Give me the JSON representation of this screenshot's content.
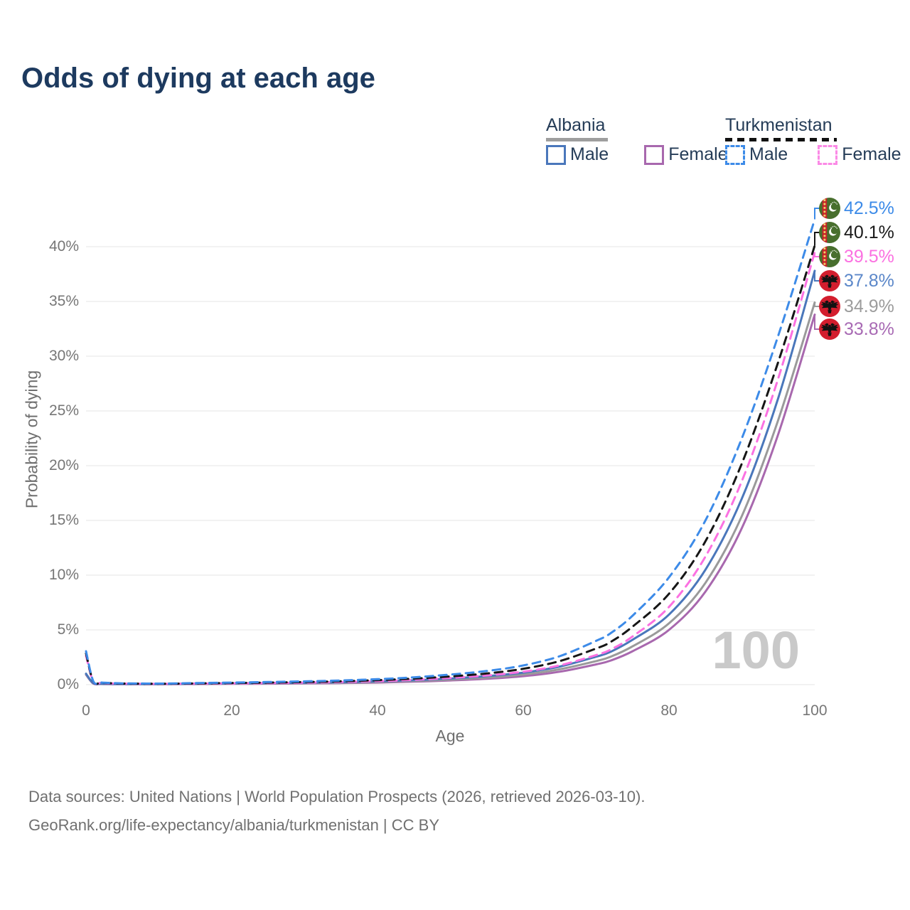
{
  "title": "Odds of dying at each age",
  "legend": {
    "albania": {
      "label": "Albania",
      "male": "Male",
      "female": "Female"
    },
    "turkmenistan": {
      "label": "Turkmenistan",
      "male": "Male",
      "female": "Female"
    }
  },
  "watermark_age": "100",
  "footer": {
    "line1": "Data sources: United Nations | World Population Prospects (2026, retrieved 2026-03-10).",
    "line2": "GeoRank.org/life-expectancy/albania/turkmenistan | CC BY"
  },
  "colors": {
    "title_text": "#1d3a5f",
    "legend_text": "#253c57",
    "axis_text": "#767676",
    "gridline": "#ededed",
    "albania_underline": "#9e9e9e",
    "turkmenistan_underline": "#111111",
    "albania_flag_red": "#d31e2e",
    "turkmenistan_flag_green": "#486f2e",
    "turkmenistan_flag_stripe": "#c8212e"
  },
  "chart_data": {
    "type": "line",
    "title": "Odds of dying at each age",
    "xlabel": "Age",
    "ylabel": "Probability of dying",
    "xlim": [
      0,
      100
    ],
    "ylim": [
      0,
      43
    ],
    "grid": "horizontal-only",
    "legend_position": "top-right",
    "y_ticks": [
      {
        "v": 0,
        "label": "0%"
      },
      {
        "v": 5,
        "label": "5%"
      },
      {
        "v": 10,
        "label": "10%"
      },
      {
        "v": 15,
        "label": "15%"
      },
      {
        "v": 20,
        "label": "20%"
      },
      {
        "v": 25,
        "label": "25%"
      },
      {
        "v": 30,
        "label": "30%"
      },
      {
        "v": 35,
        "label": "35%"
      },
      {
        "v": 40,
        "label": "40%"
      }
    ],
    "x_ticks": [
      {
        "v": 0,
        "label": "0"
      },
      {
        "v": 20,
        "label": "20"
      },
      {
        "v": 40,
        "label": "40"
      },
      {
        "v": 60,
        "label": "60"
      },
      {
        "v": 80,
        "label": "80"
      },
      {
        "v": 100,
        "label": "100"
      }
    ],
    "series": [
      {
        "name": "Turkmenistan Male",
        "country": "Turkmenistan",
        "sex": "male",
        "flag": "flag-tm",
        "color": "#3d8be8",
        "label_color": "#3d8be8",
        "dashed": true,
        "end_label": "42.5%",
        "end_value": 42.5,
        "points": [
          [
            0,
            3.05
          ],
          [
            1,
            0.3
          ],
          [
            2,
            0.2
          ],
          [
            3,
            0.16
          ],
          [
            5,
            0.12
          ],
          [
            10,
            0.1
          ],
          [
            15,
            0.14
          ],
          [
            20,
            0.19
          ],
          [
            25,
            0.24
          ],
          [
            30,
            0.3
          ],
          [
            35,
            0.38
          ],
          [
            40,
            0.5
          ],
          [
            45,
            0.67
          ],
          [
            50,
            0.92
          ],
          [
            55,
            1.25
          ],
          [
            60,
            1.75
          ],
          [
            65,
            2.6
          ],
          [
            70,
            4.0
          ],
          [
            72,
            4.7
          ],
          [
            75,
            6.3
          ],
          [
            80,
            9.8
          ],
          [
            85,
            15.0
          ],
          [
            90,
            22.5
          ],
          [
            95,
            31.9
          ],
          [
            100,
            42.5
          ]
        ]
      },
      {
        "name": "Turkmenistan Both sexes",
        "country": "Turkmenistan",
        "sex": "both",
        "flag": "flag-tm",
        "color": "#161616",
        "label_color": "#1a1a1a",
        "dashed": true,
        "end_label": "40.1%",
        "end_value": 40.1,
        "points": [
          [
            0,
            2.85
          ],
          [
            1,
            0.27
          ],
          [
            2,
            0.18
          ],
          [
            3,
            0.14
          ],
          [
            5,
            0.1
          ],
          [
            10,
            0.08
          ],
          [
            15,
            0.11
          ],
          [
            20,
            0.15
          ],
          [
            25,
            0.19
          ],
          [
            30,
            0.24
          ],
          [
            35,
            0.31
          ],
          [
            40,
            0.41
          ],
          [
            45,
            0.55
          ],
          [
            50,
            0.75
          ],
          [
            55,
            1.02
          ],
          [
            60,
            1.45
          ],
          [
            65,
            2.15
          ],
          [
            70,
            3.3
          ],
          [
            72,
            3.9
          ],
          [
            75,
            5.3
          ],
          [
            80,
            8.3
          ],
          [
            85,
            13.1
          ],
          [
            90,
            20.2
          ],
          [
            95,
            29.5
          ],
          [
            100,
            40.1
          ]
        ]
      },
      {
        "name": "Turkmenistan Female",
        "country": "Turkmenistan",
        "sex": "female",
        "flag": "flag-tm",
        "color": "#fb71e1",
        "label_color": "#fb71e1",
        "dashed": true,
        "end_label": "39.5%",
        "end_value": 39.5,
        "points": [
          [
            0,
            2.65
          ],
          [
            1,
            0.24
          ],
          [
            2,
            0.16
          ],
          [
            3,
            0.12
          ],
          [
            5,
            0.09
          ],
          [
            10,
            0.07
          ],
          [
            15,
            0.09
          ],
          [
            20,
            0.11
          ],
          [
            25,
            0.14
          ],
          [
            30,
            0.18
          ],
          [
            35,
            0.24
          ],
          [
            40,
            0.32
          ],
          [
            45,
            0.44
          ],
          [
            50,
            0.61
          ],
          [
            55,
            0.84
          ],
          [
            60,
            1.18
          ],
          [
            65,
            1.76
          ],
          [
            70,
            2.7
          ],
          [
            72,
            3.2
          ],
          [
            75,
            4.4
          ],
          [
            80,
            7.1
          ],
          [
            85,
            11.7
          ],
          [
            90,
            18.6
          ],
          [
            95,
            28.0
          ],
          [
            100,
            39.5
          ]
        ]
      },
      {
        "name": "Albania Male",
        "country": "Albania",
        "sex": "male",
        "flag": "flag-al",
        "color": "#4a77bb",
        "label_color": "#5b87c9",
        "dashed": false,
        "end_label": "37.8%",
        "end_value": 37.8,
        "points": [
          [
            0,
            1.0
          ],
          [
            1,
            0.12
          ],
          [
            2,
            0.08
          ],
          [
            3,
            0.07
          ],
          [
            5,
            0.06
          ],
          [
            10,
            0.06
          ],
          [
            15,
            0.09
          ],
          [
            20,
            0.12
          ],
          [
            25,
            0.14
          ],
          [
            30,
            0.17
          ],
          [
            35,
            0.22
          ],
          [
            40,
            0.29
          ],
          [
            45,
            0.4
          ],
          [
            50,
            0.56
          ],
          [
            55,
            0.78
          ],
          [
            60,
            1.1
          ],
          [
            65,
            1.65
          ],
          [
            70,
            2.55
          ],
          [
            72,
            3.0
          ],
          [
            75,
            4.1
          ],
          [
            80,
            6.4
          ],
          [
            85,
            10.5
          ],
          [
            90,
            17.0
          ],
          [
            95,
            26.2
          ],
          [
            100,
            37.8
          ]
        ]
      },
      {
        "name": "Albania Both sexes",
        "country": "Albania",
        "sex": "both",
        "flag": "flag-al",
        "color": "#9a9a9a",
        "label_color": "#9c9c9c",
        "dashed": false,
        "end_label": "34.9%",
        "end_value": 34.9,
        "points": [
          [
            0,
            0.95
          ],
          [
            1,
            0.11
          ],
          [
            2,
            0.07
          ],
          [
            3,
            0.06
          ],
          [
            5,
            0.05
          ],
          [
            10,
            0.05
          ],
          [
            15,
            0.07
          ],
          [
            20,
            0.1
          ],
          [
            25,
            0.12
          ],
          [
            30,
            0.14
          ],
          [
            35,
            0.18
          ],
          [
            40,
            0.24
          ],
          [
            45,
            0.33
          ],
          [
            50,
            0.46
          ],
          [
            55,
            0.64
          ],
          [
            60,
            0.92
          ],
          [
            65,
            1.4
          ],
          [
            70,
            2.15
          ],
          [
            72,
            2.55
          ],
          [
            75,
            3.5
          ],
          [
            80,
            5.6
          ],
          [
            85,
            9.3
          ],
          [
            90,
            15.4
          ],
          [
            95,
            24.2
          ],
          [
            100,
            34.9
          ]
        ]
      },
      {
        "name": "Albania Female",
        "country": "Albania",
        "sex": "female",
        "flag": "flag-al",
        "color": "#a868ae",
        "label_color": "#a86ab4",
        "dashed": false,
        "end_label": "33.8%",
        "end_value": 33.8,
        "points": [
          [
            0,
            0.9
          ],
          [
            1,
            0.1
          ],
          [
            2,
            0.06
          ],
          [
            3,
            0.05
          ],
          [
            5,
            0.04
          ],
          [
            10,
            0.04
          ],
          [
            15,
            0.05
          ],
          [
            20,
            0.08
          ],
          [
            25,
            0.09
          ],
          [
            30,
            0.11
          ],
          [
            35,
            0.14
          ],
          [
            40,
            0.19
          ],
          [
            45,
            0.27
          ],
          [
            50,
            0.38
          ],
          [
            55,
            0.53
          ],
          [
            60,
            0.77
          ],
          [
            65,
            1.18
          ],
          [
            70,
            1.85
          ],
          [
            72,
            2.2
          ],
          [
            75,
            3.05
          ],
          [
            80,
            5.0
          ],
          [
            85,
            8.5
          ],
          [
            90,
            14.3
          ],
          [
            95,
            22.9
          ],
          [
            100,
            33.8
          ]
        ]
      }
    ],
    "age_indicator": "100"
  }
}
